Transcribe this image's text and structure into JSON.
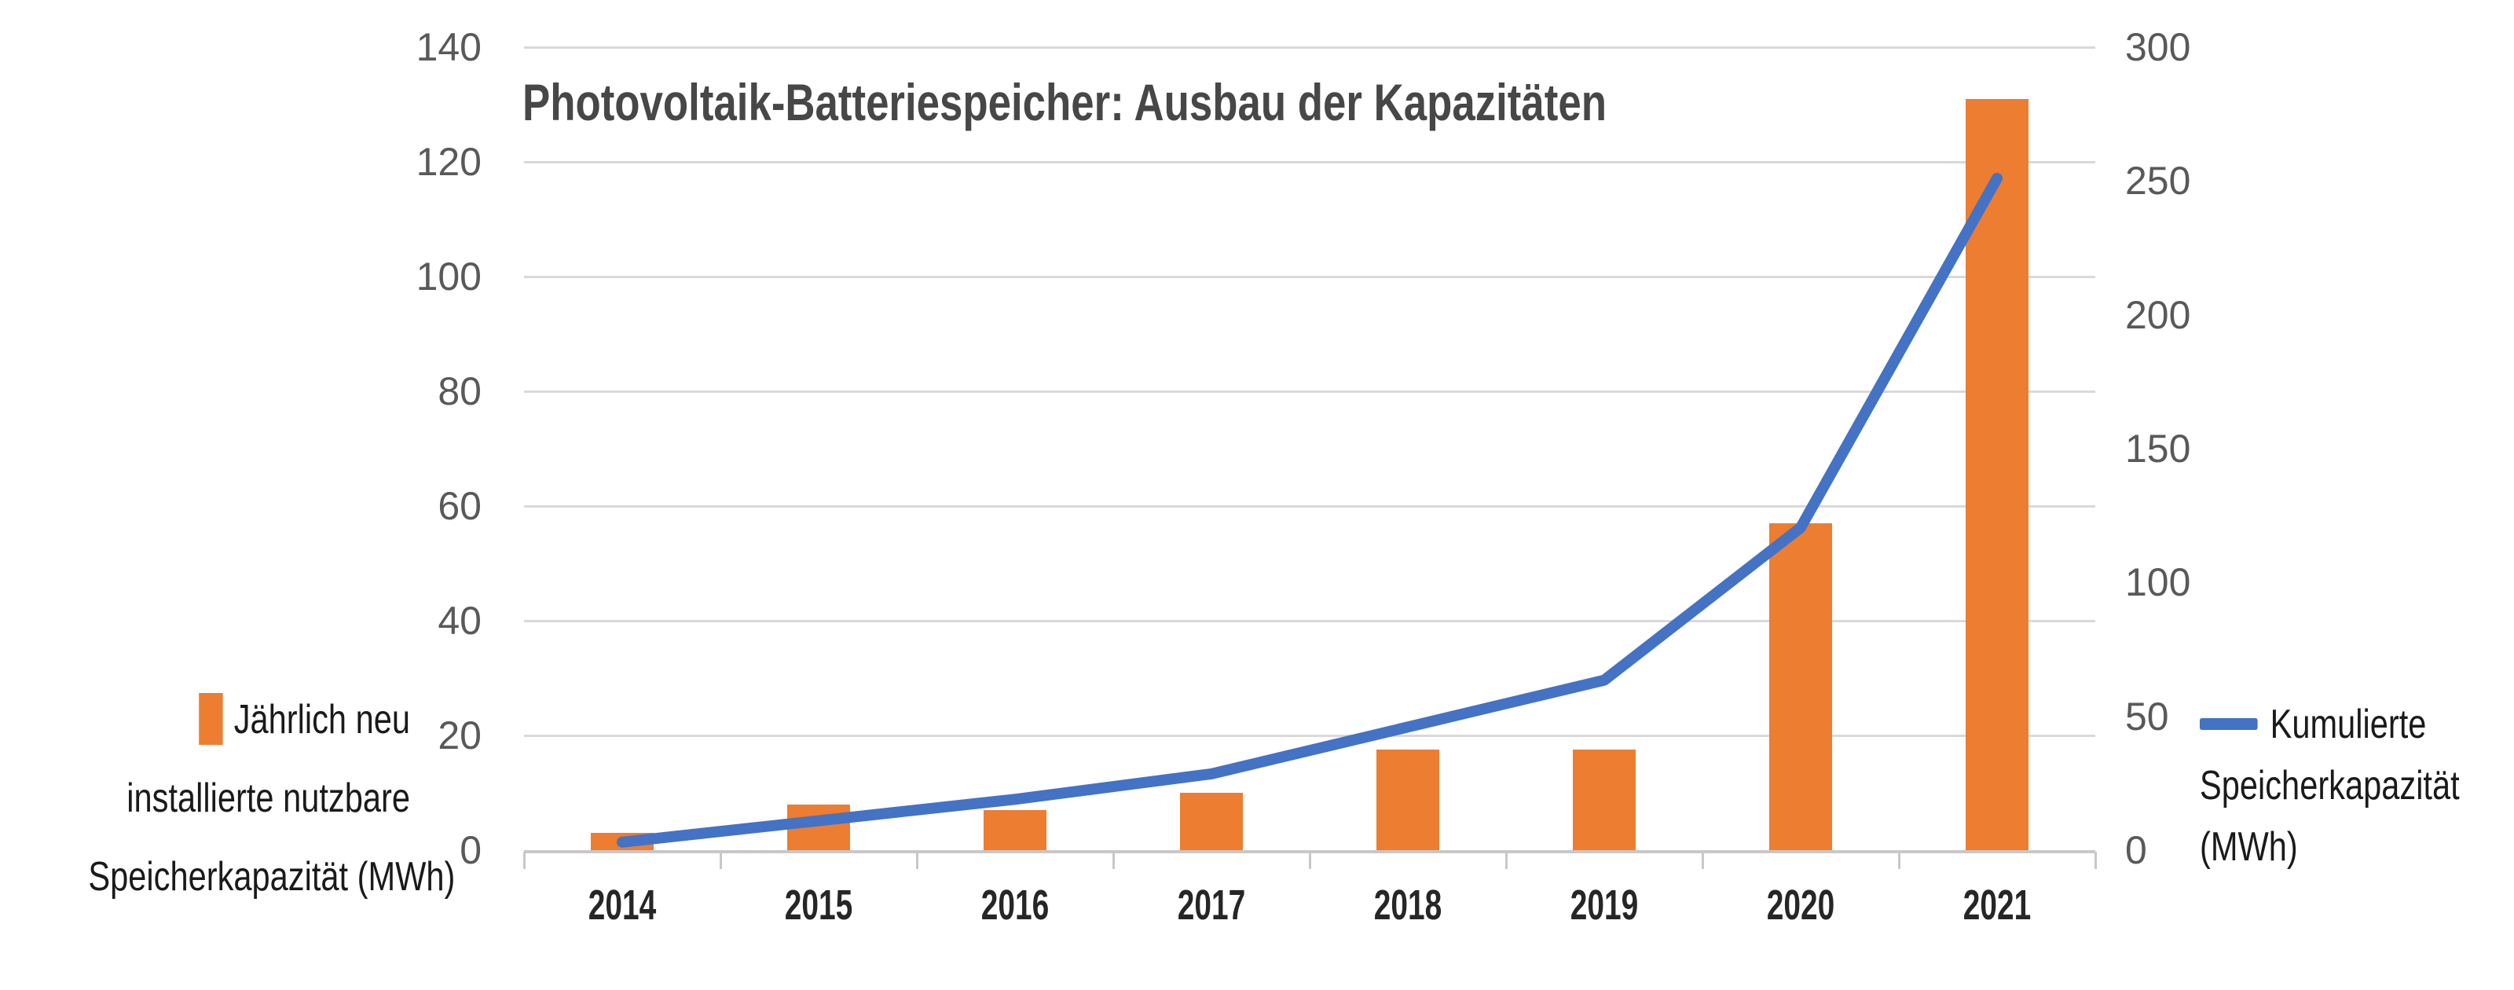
{
  "title": "Photovoltaik-Batteriespeicher: Ausbau der Kapazitäten",
  "legend_left": {
    "lines": [
      "Jährlich neu",
      "installierte nutzbare",
      "Speicherkapazität (MWh)"
    ]
  },
  "legend_right": {
    "lines": [
      "Kumulierte",
      "Speicherkapazität",
      "(MWh)"
    ]
  },
  "colors": {
    "bar": "#ED7D31",
    "line": "#4472C4",
    "title": "#474747",
    "axis_tick_label": "#595959",
    "year_label": "#262626",
    "legend_text": "#1A1A1A",
    "gridline": "#D9D9D9",
    "axis_line": "#C9C7C7",
    "background": "#FFFFFF"
  },
  "chart_data": {
    "type": "bar",
    "subtype": "combo-bar-line-dual-axis",
    "title": "Photovoltaik-Batteriespeicher: Ausbau der Kapazitäten",
    "categories": [
      "2014",
      "2015",
      "2016",
      "2017",
      "2018",
      "2019",
      "2020",
      "2021"
    ],
    "series": [
      {
        "name": "Jährlich neu installierte nutzbare Speicherkapazität (MWh)",
        "type": "bar",
        "axis": "left",
        "color": "#ED7D31",
        "values": [
          3,
          8,
          7,
          10,
          17.5,
          17.5,
          57,
          131
        ]
      },
      {
        "name": "Kumulierte Speicherkapazität (MWh)",
        "type": "line",
        "axis": "right",
        "color": "#4472C4",
        "values": [
          3,
          11,
          19,
          28.5,
          46,
          63.5,
          120.5,
          251
        ]
      }
    ],
    "axes": {
      "left": {
        "min": 0,
        "max": 140,
        "step": 20,
        "ticks": [
          0,
          20,
          40,
          60,
          80,
          100,
          120,
          140
        ]
      },
      "right": {
        "min": 0,
        "max": 300,
        "step": 50,
        "ticks": [
          0,
          50,
          100,
          150,
          200,
          250,
          300
        ]
      }
    },
    "xlabel": "",
    "ylabel_left": "",
    "ylabel_right": "",
    "grid": true,
    "legend_position": "left-and-right-outside"
  }
}
